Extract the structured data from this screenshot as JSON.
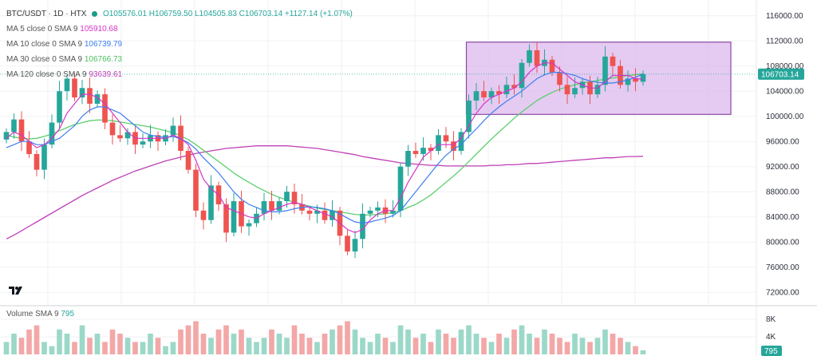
{
  "header": {
    "symbol": "BTC/USDT · 1D · HTX",
    "ohlc": "O105576.01 H106759.50 L104505.83 C106703.14 +1127.14 (+1.07%)",
    "status_color": "#1a9c8a"
  },
  "indicators": [
    {
      "label": "MA 5 close 0 SMA 9",
      "value": "105910.68",
      "color": "#d633c8"
    },
    {
      "label": "MA 10 close 0 SMA 9",
      "value": "106739.79",
      "color": "#3d7ff0"
    },
    {
      "label": "MA 30 close 0 SMA 9",
      "value": "106766.73",
      "color": "#5ccf6e"
    },
    {
      "label": "MA 120 close 0 SMA 9",
      "value": "93639.61",
      "color": "#c040b8"
    }
  ],
  "volume_label": "Volume SMA 9",
  "volume_value": "795",
  "logo_text": "TV",
  "chart_data": {
    "type": "candlestick",
    "symbol": "BTC/USDT",
    "interval": "1D",
    "exchange": "HTX",
    "y_ticks": [
      72000,
      76000,
      80000,
      84000,
      88000,
      92000,
      96000,
      100000,
      104000,
      108000,
      112000,
      116000
    ],
    "y_tick_labels": [
      "72000.00",
      "76000.00",
      "80000.00",
      "84000.00",
      "88000.00",
      "92000.00",
      "96000.00",
      "100000.00",
      "104000.00",
      "108000.00",
      "112000.00",
      "116000.00"
    ],
    "ylim": [
      70000,
      118500
    ],
    "last_price": 106703.14,
    "last_price_label": "106703.14",
    "volume_axis_ticks": [
      "8K",
      "4K"
    ],
    "volume_last_label": "795",
    "up_color": "#26a69a",
    "down_color": "#ef5350",
    "highlight_box": {
      "price_top": 111800,
      "price_bottom": 100300,
      "fill": "#dcb8ec",
      "stroke": "#8d4aa6"
    },
    "closes": [
      97500,
      99500,
      96000,
      94000,
      91500,
      95500,
      99000,
      104000,
      106000,
      103000,
      104500,
      102000,
      103500,
      99000,
      97000,
      96500,
      97500,
      95500,
      96000,
      97000,
      96000,
      97000,
      98500,
      94500,
      91500,
      85000,
      83500,
      89000,
      86000,
      81500,
      86500,
      82500,
      83000,
      84500,
      86500,
      85000,
      86500,
      88000,
      86000,
      85000,
      84500,
      85000,
      83500,
      85000,
      81000,
      78500,
      80500,
      84500,
      85000,
      85500,
      84500,
      85000,
      92000,
      94500,
      94000,
      95000,
      94500,
      97000,
      96000,
      94500,
      97500,
      102500,
      104000,
      103000,
      104000,
      103500,
      105000,
      104500,
      108500,
      110500,
      108000,
      109000,
      107000,
      105000,
      103500,
      104500,
      105500,
      103500,
      105000,
      109500,
      108000,
      105000,
      106000,
      105500,
      106703
    ],
    "ma5": [
      96500,
      97500,
      97000,
      96000,
      95000,
      95500,
      96500,
      98000,
      100500,
      102000,
      103500,
      103500,
      103000,
      102000,
      100500,
      99000,
      97500,
      96500,
      96500,
      96500,
      96500,
      96500,
      97000,
      96500,
      95500,
      93000,
      90000,
      88500,
      87500,
      85500,
      85000,
      84500,
      84000,
      83800,
      84500,
      85000,
      85500,
      86000,
      86300,
      86000,
      85500,
      85000,
      84500,
      84000,
      83000,
      82000,
      81500,
      82000,
      83500,
      84500,
      85000,
      85000,
      87000,
      89500,
      91500,
      93500,
      94500,
      95500,
      95500,
      95500,
      96500,
      98500,
      100500,
      102000,
      103000,
      103500,
      104000,
      104500,
      105500,
      107000,
      108000,
      108500,
      108500,
      107500,
      106500,
      105500,
      105000,
      104500,
      104500,
      105500,
      106500,
      106500,
      106500,
      106000,
      105910
    ],
    "ma10": [
      95000,
      95500,
      96000,
      96000,
      95500,
      95500,
      96000,
      96500,
      97500,
      98500,
      100000,
      101000,
      101500,
      101500,
      101000,
      100500,
      99500,
      98500,
      97500,
      97000,
      96800,
      96600,
      96800,
      96400,
      95800,
      94800,
      93400,
      92200,
      91000,
      89500,
      88000,
      86800,
      86000,
      85500,
      85000,
      84800,
      84800,
      85000,
      85300,
      85500,
      85600,
      85500,
      85300,
      85000,
      84500,
      83800,
      83200,
      83000,
      83200,
      83500,
      83800,
      84200,
      85000,
      86500,
      88000,
      89500,
      91000,
      92500,
      93800,
      94800,
      95500,
      96800,
      98000,
      99300,
      100500,
      101500,
      102400,
      103200,
      104000,
      105000,
      106000,
      106600,
      107000,
      107000,
      106800,
      106500,
      106000,
      105600,
      105400,
      105300,
      105300,
      105500,
      105800,
      106200,
      106739
    ],
    "ma30": [
      97000,
      96700,
      96500,
      96400,
      96500,
      96800,
      97200,
      97700,
      98200,
      98700,
      99000,
      99300,
      99400,
      99400,
      99300,
      99100,
      98900,
      98700,
      98500,
      98300,
      98000,
      97700,
      97400,
      96900,
      96300,
      95500,
      94600,
      93700,
      92800,
      91900,
      91000,
      90200,
      89500,
      88800,
      88200,
      87600,
      87100,
      86700,
      86300,
      86000,
      85700,
      85400,
      85200,
      85000,
      84800,
      84600,
      84400,
      84300,
      84300,
      84400,
      84500,
      84700,
      85000,
      85500,
      86000,
      86700,
      87500,
      88500,
      89500,
      90500,
      91600,
      92800,
      94000,
      95200,
      96400,
      97500,
      98600,
      99700,
      100700,
      101600,
      102500,
      103200,
      103800,
      104300,
      104700,
      105000,
      105300,
      105500,
      105700,
      105900,
      106100,
      106300,
      106500,
      106600,
      106766
    ],
    "ma120": [
      80500,
      81100,
      81800,
      82500,
      83200,
      83900,
      84600,
      85300,
      86000,
      86700,
      87400,
      88000,
      88600,
      89200,
      89800,
      90300,
      90800,
      91300,
      91700,
      92100,
      92500,
      92900,
      93200,
      93500,
      93800,
      94100,
      94300,
      94500,
      94700,
      94900,
      95000,
      95100,
      95200,
      95300,
      95300,
      95300,
      95300,
      95300,
      95200,
      95100,
      95000,
      94900,
      94700,
      94500,
      94300,
      94100,
      93900,
      93600,
      93400,
      93200,
      93000,
      92800,
      92600,
      92500,
      92400,
      92300,
      92200,
      92200,
      92100,
      92100,
      92100,
      92100,
      92100,
      92100,
      92200,
      92200,
      92300,
      92300,
      92400,
      92500,
      92500,
      92600,
      92700,
      92800,
      92900,
      93000,
      93100,
      93200,
      93300,
      93400,
      93400,
      93500,
      93600,
      93600,
      93639
    ],
    "volumes": [
      3,
      5,
      4,
      6,
      7,
      3,
      2,
      6,
      5,
      3,
      7,
      4,
      5,
      3,
      6,
      5,
      4,
      3,
      3,
      5,
      4,
      2,
      3,
      6,
      7,
      8,
      5,
      4,
      6,
      7,
      5,
      6,
      4,
      3,
      4,
      6,
      5,
      4,
      7,
      5,
      4,
      3,
      5,
      6,
      7,
      8,
      6,
      4,
      3,
      5,
      4,
      3,
      7,
      6,
      4,
      5,
      3,
      6,
      5,
      4,
      6,
      7,
      5,
      4,
      3,
      5,
      4,
      6,
      7,
      5,
      4,
      6,
      5,
      4,
      3,
      5,
      4,
      3,
      4,
      6,
      5,
      4,
      3,
      2,
      1
    ]
  }
}
